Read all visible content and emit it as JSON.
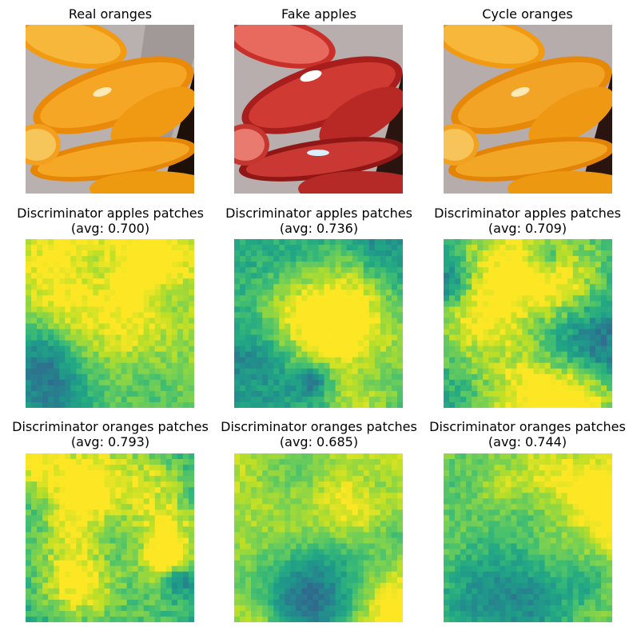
{
  "figure": {
    "rows": [
      {
        "row": "images",
        "titles": [
          "Real oranges",
          "Fake apples",
          "Cycle oranges"
        ]
      },
      {
        "row": "discriminator-apples",
        "titles": [
          "Discriminator apples patches\n(avg: 0.700)",
          "Discriminator apples patches\n(avg: 0.736)",
          "Discriminator apples patches\n(avg: 0.709)"
        ]
      },
      {
        "row": "discriminator-oranges",
        "titles": [
          "Discriminator oranges patches\n(avg: 0.793)",
          "Discriminator oranges patches\n(avg: 0.685)",
          "Discriminator oranges patches\n(avg: 0.744)"
        ]
      }
    ]
  },
  "chart_data": [
    {
      "type": "heatmap",
      "title": "Discriminator apples patches\n(avg: 0.700)",
      "colormap": "viridis",
      "avg": 0.7,
      "grid": "30x30"
    },
    {
      "type": "heatmap",
      "title": "Discriminator apples patches\n(avg: 0.736)",
      "colormap": "viridis",
      "avg": 0.736,
      "grid": "30x30"
    },
    {
      "type": "heatmap",
      "title": "Discriminator apples patches\n(avg: 0.709)",
      "colormap": "viridis",
      "avg": 0.709,
      "grid": "30x30"
    },
    {
      "type": "heatmap",
      "title": "Discriminator oranges patches\n(avg: 0.793)",
      "colormap": "viridis",
      "avg": 0.793,
      "grid": "30x30"
    },
    {
      "type": "heatmap",
      "title": "Discriminator oranges patches\n(avg: 0.685)",
      "colormap": "viridis",
      "avg": 0.685,
      "grid": "30x30"
    },
    {
      "type": "heatmap",
      "title": "Discriminator oranges patches\n(avg: 0.744)",
      "colormap": "viridis",
      "avg": 0.744,
      "grid": "30x30"
    }
  ],
  "colors": {
    "orange": "#f39a12",
    "orange_dark": "#c86a05",
    "peel": "#f7c65a",
    "apple_red": "#c83a30",
    "apple_dark": "#8a1a18",
    "plate": "#c8c0c0",
    "background": "#2a1a10"
  }
}
